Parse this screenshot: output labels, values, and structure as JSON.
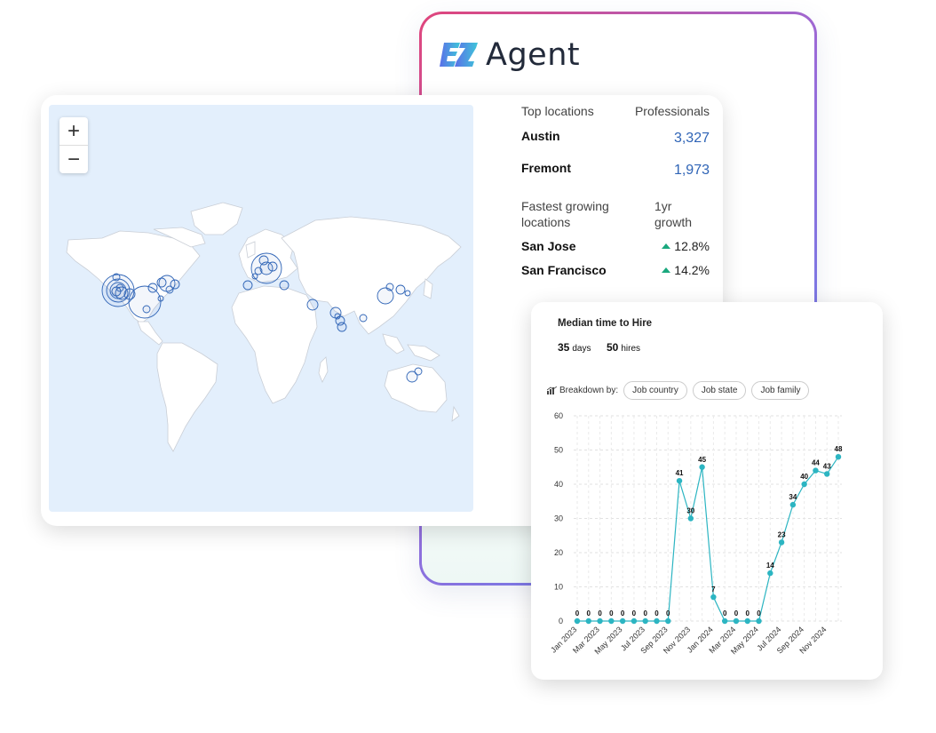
{
  "brand": {
    "name": "Agent",
    "mark_text": "EZ",
    "mark_colors": [
      "#5b6fe8",
      "#3ec6d9"
    ]
  },
  "map": {
    "zoom_in": "+",
    "zoom_out": "−",
    "land_color": "#ffffff",
    "ocean_color": "#e3effc",
    "bubble_color": "#2f64b6"
  },
  "stats": {
    "top_locations_header": "Top locations",
    "professionals_header": "Professionals",
    "top_locations": [
      {
        "name": "Austin",
        "value": "3,327"
      },
      {
        "name": "Fremont",
        "value": "1,973"
      }
    ],
    "growing_header": "Fastest growing locations",
    "growth_header": "1yr growth",
    "growing": [
      {
        "name": "San Jose",
        "value": "12.8%"
      },
      {
        "name": "San Francisco",
        "value": "14.2%"
      }
    ],
    "accent_up_color": "#1aa87e"
  },
  "chart_panel": {
    "title": "Median time to Hire",
    "days_value": "35",
    "days_unit": "days",
    "hires_value": "50",
    "hires_unit": "hires",
    "breakdown_label": "Breakdown by:",
    "chips": [
      "Job country",
      "Job state",
      "Job family"
    ]
  },
  "chart_data": {
    "type": "line",
    "title": "",
    "xlabel": "",
    "ylabel": "",
    "ylim": [
      0,
      60
    ],
    "yticks": [
      0,
      10,
      20,
      30,
      40,
      50,
      60
    ],
    "x": [
      "Jan 2023",
      "Feb 2023",
      "Mar 2023",
      "Apr 2023",
      "May 2023",
      "Jun 2023",
      "Jul 2023",
      "Aug 2023",
      "Sep 2023",
      "Oct 2023",
      "Nov 2023",
      "Dec 2023",
      "Jan 2024",
      "Feb 2024",
      "Mar 2024",
      "Apr 2024",
      "May 2024",
      "Jun 2024",
      "Jul 2024",
      "Aug 2024",
      "Sep 2024",
      "Oct 2024",
      "Nov 2024",
      "Dec 2024"
    ],
    "tick_labels": [
      "Jan 2023",
      "Mar 2023",
      "May 2023",
      "Jul 2023",
      "Sep 2023",
      "Nov 2023",
      "Jan 2024",
      "Mar 2024",
      "May 2024",
      "Jul 2024",
      "Sep 2024",
      "Nov 2024"
    ],
    "series": [
      {
        "values": [
          0,
          0,
          0,
          0,
          0,
          0,
          0,
          0,
          0,
          41,
          30,
          45,
          7,
          0,
          0,
          0,
          0,
          14,
          23,
          34,
          40,
          44,
          43,
          48
        ]
      }
    ],
    "grid": true,
    "line_color": "#2cb5c2"
  }
}
